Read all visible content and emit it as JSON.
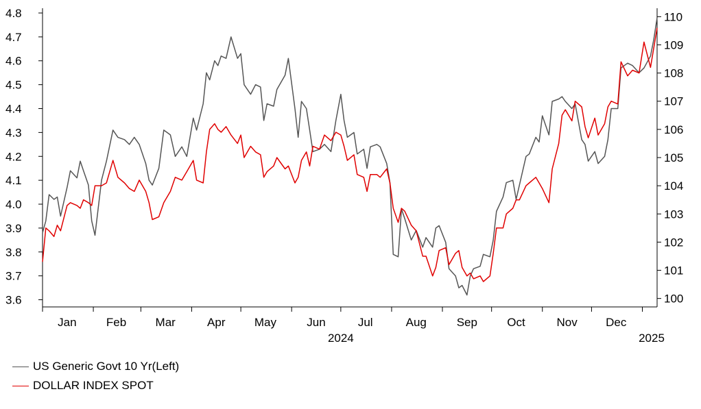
{
  "chart_data": {
    "type": "line",
    "title": "",
    "x_months": [
      "Jan",
      "Feb",
      "Mar",
      "Apr",
      "May",
      "Jun",
      "Jul",
      "Aug",
      "Sep",
      "Oct",
      "Nov",
      "Dec"
    ],
    "x_year_labels": [
      "2024",
      "2025"
    ],
    "x_range": [
      "2024-01-01",
      "2025-01-10"
    ],
    "y_left": {
      "ylim": [
        3.57,
        4.82
      ],
      "ticks": [
        "3.6",
        "3.7",
        "3.8",
        "3.9",
        "4.0",
        "4.1",
        "4.2",
        "4.3",
        "4.4",
        "4.5",
        "4.6",
        "4.7",
        "4.8"
      ]
    },
    "y_right": {
      "ylim": [
        99.7,
        110.3
      ],
      "ticks": [
        "100",
        "101",
        "102",
        "103",
        "104",
        "105",
        "106",
        "107",
        "108",
        "109",
        "110"
      ]
    },
    "grid": false,
    "legend_position": "bottom-left",
    "series": [
      {
        "name": "US Generic Govt 10 Yr(Left)",
        "axis": "left",
        "color": "#555555",
        "points": [
          [
            "2024-01-01",
            3.88
          ],
          [
            "2024-01-03",
            3.93
          ],
          [
            "2024-01-05",
            4.04
          ],
          [
            "2024-01-08",
            4.02
          ],
          [
            "2024-01-10",
            4.03
          ],
          [
            "2024-01-12",
            3.95
          ],
          [
            "2024-01-16",
            4.07
          ],
          [
            "2024-01-18",
            4.14
          ],
          [
            "2024-01-22",
            4.11
          ],
          [
            "2024-01-24",
            4.18
          ],
          [
            "2024-01-26",
            4.14
          ],
          [
            "2024-01-29",
            4.08
          ],
          [
            "2024-01-31",
            3.93
          ],
          [
            "2024-02-02",
            3.87
          ],
          [
            "2024-02-06",
            4.1
          ],
          [
            "2024-02-09",
            4.18
          ],
          [
            "2024-02-13",
            4.31
          ],
          [
            "2024-02-16",
            4.28
          ],
          [
            "2024-02-20",
            4.27
          ],
          [
            "2024-02-23",
            4.25
          ],
          [
            "2024-02-26",
            4.28
          ],
          [
            "2024-02-29",
            4.25
          ],
          [
            "2024-03-04",
            4.17
          ],
          [
            "2024-03-06",
            4.1
          ],
          [
            "2024-03-08",
            4.08
          ],
          [
            "2024-03-12",
            4.15
          ],
          [
            "2024-03-15",
            4.31
          ],
          [
            "2024-03-19",
            4.29
          ],
          [
            "2024-03-22",
            4.2
          ],
          [
            "2024-03-26",
            4.24
          ],
          [
            "2024-03-29",
            4.2
          ],
          [
            "2024-04-02",
            4.36
          ],
          [
            "2024-04-04",
            4.31
          ],
          [
            "2024-04-08",
            4.42
          ],
          [
            "2024-04-10",
            4.55
          ],
          [
            "2024-04-12",
            4.52
          ],
          [
            "2024-04-15",
            4.6
          ],
          [
            "2024-04-17",
            4.58
          ],
          [
            "2024-04-19",
            4.62
          ],
          [
            "2024-04-22",
            4.61
          ],
          [
            "2024-04-25",
            4.7
          ],
          [
            "2024-04-29",
            4.61
          ],
          [
            "2024-05-01",
            4.63
          ],
          [
            "2024-05-03",
            4.5
          ],
          [
            "2024-05-07",
            4.46
          ],
          [
            "2024-05-10",
            4.5
          ],
          [
            "2024-05-13",
            4.49
          ],
          [
            "2024-05-15",
            4.35
          ],
          [
            "2024-05-17",
            4.42
          ],
          [
            "2024-05-21",
            4.41
          ],
          [
            "2024-05-23",
            4.48
          ],
          [
            "2024-05-28",
            4.54
          ],
          [
            "2024-05-30",
            4.61
          ],
          [
            "2024-06-03",
            4.4
          ],
          [
            "2024-06-05",
            4.28
          ],
          [
            "2024-06-07",
            4.43
          ],
          [
            "2024-06-10",
            4.4
          ],
          [
            "2024-06-12",
            4.31
          ],
          [
            "2024-06-14",
            4.22
          ],
          [
            "2024-06-18",
            4.23
          ],
          [
            "2024-06-21",
            4.25
          ],
          [
            "2024-06-25",
            4.22
          ],
          [
            "2024-06-28",
            4.35
          ],
          [
            "2024-07-01",
            4.46
          ],
          [
            "2024-07-03",
            4.35
          ],
          [
            "2024-07-05",
            4.28
          ],
          [
            "2024-07-09",
            4.3
          ],
          [
            "2024-07-11",
            4.21
          ],
          [
            "2024-07-15",
            4.23
          ],
          [
            "2024-07-17",
            4.15
          ],
          [
            "2024-07-19",
            4.24
          ],
          [
            "2024-07-23",
            4.25
          ],
          [
            "2024-07-25",
            4.24
          ],
          [
            "2024-07-29",
            4.17
          ],
          [
            "2024-07-31",
            4.09
          ],
          [
            "2024-08-02",
            3.79
          ],
          [
            "2024-08-05",
            3.78
          ],
          [
            "2024-08-07",
            3.98
          ],
          [
            "2024-08-09",
            3.94
          ],
          [
            "2024-08-13",
            3.85
          ],
          [
            "2024-08-16",
            3.89
          ],
          [
            "2024-08-20",
            3.82
          ],
          [
            "2024-08-22",
            3.86
          ],
          [
            "2024-08-26",
            3.82
          ],
          [
            "2024-08-28",
            3.9
          ],
          [
            "2024-08-30",
            3.91
          ],
          [
            "2024-09-03",
            3.84
          ],
          [
            "2024-09-05",
            3.73
          ],
          [
            "2024-09-09",
            3.7
          ],
          [
            "2024-09-11",
            3.65
          ],
          [
            "2024-09-13",
            3.66
          ],
          [
            "2024-09-16",
            3.62
          ],
          [
            "2024-09-18",
            3.7
          ],
          [
            "2024-09-20",
            3.73
          ],
          [
            "2024-09-24",
            3.74
          ],
          [
            "2024-09-26",
            3.79
          ],
          [
            "2024-09-30",
            3.78
          ],
          [
            "2024-10-02",
            3.85
          ],
          [
            "2024-10-04",
            3.97
          ],
          [
            "2024-10-08",
            4.03
          ],
          [
            "2024-10-10",
            4.09
          ],
          [
            "2024-10-14",
            4.1
          ],
          [
            "2024-10-16",
            4.02
          ],
          [
            "2024-10-18",
            4.08
          ],
          [
            "2024-10-22",
            4.2
          ],
          [
            "2024-10-24",
            4.21
          ],
          [
            "2024-10-28",
            4.28
          ],
          [
            "2024-10-30",
            4.26
          ],
          [
            "2024-11-01",
            4.37
          ],
          [
            "2024-11-05",
            4.29
          ],
          [
            "2024-11-07",
            4.43
          ],
          [
            "2024-11-11",
            4.44
          ],
          [
            "2024-11-13",
            4.45
          ],
          [
            "2024-11-15",
            4.43
          ],
          [
            "2024-11-19",
            4.4
          ],
          [
            "2024-11-21",
            4.42
          ],
          [
            "2024-11-25",
            4.27
          ],
          [
            "2024-11-27",
            4.25
          ],
          [
            "2024-11-29",
            4.18
          ],
          [
            "2024-12-03",
            4.22
          ],
          [
            "2024-12-05",
            4.17
          ],
          [
            "2024-12-09",
            4.2
          ],
          [
            "2024-12-11",
            4.27
          ],
          [
            "2024-12-13",
            4.4
          ],
          [
            "2024-12-17",
            4.4
          ],
          [
            "2024-12-19",
            4.57
          ],
          [
            "2024-12-23",
            4.59
          ],
          [
            "2024-12-26",
            4.58
          ],
          [
            "2024-12-30",
            4.55
          ],
          [
            "2025-01-02",
            4.57
          ],
          [
            "2025-01-06",
            4.62
          ],
          [
            "2025-01-08",
            4.69
          ],
          [
            "2025-01-10",
            4.78
          ]
        ]
      },
      {
        "name": "DOLLAR INDEX SPOT",
        "axis": "right",
        "color": "#e00000",
        "points": [
          [
            "2024-01-01",
            101.3
          ],
          [
            "2024-01-03",
            102.5
          ],
          [
            "2024-01-05",
            102.4
          ],
          [
            "2024-01-08",
            102.2
          ],
          [
            "2024-01-10",
            102.6
          ],
          [
            "2024-01-12",
            102.4
          ],
          [
            "2024-01-16",
            103.3
          ],
          [
            "2024-01-18",
            103.4
          ],
          [
            "2024-01-22",
            103.3
          ],
          [
            "2024-01-24",
            103.2
          ],
          [
            "2024-01-26",
            103.5
          ],
          [
            "2024-01-29",
            103.4
          ],
          [
            "2024-01-31",
            103.3
          ],
          [
            "2024-02-02",
            104.0
          ],
          [
            "2024-02-06",
            104.0
          ],
          [
            "2024-02-09",
            104.1
          ],
          [
            "2024-02-13",
            104.9
          ],
          [
            "2024-02-16",
            104.3
          ],
          [
            "2024-02-20",
            104.1
          ],
          [
            "2024-02-23",
            103.9
          ],
          [
            "2024-02-26",
            103.8
          ],
          [
            "2024-02-29",
            104.2
          ],
          [
            "2024-03-04",
            103.8
          ],
          [
            "2024-03-06",
            103.4
          ],
          [
            "2024-03-08",
            102.8
          ],
          [
            "2024-03-12",
            102.9
          ],
          [
            "2024-03-15",
            103.4
          ],
          [
            "2024-03-19",
            103.8
          ],
          [
            "2024-03-22",
            104.3
          ],
          [
            "2024-03-26",
            104.2
          ],
          [
            "2024-03-29",
            104.5
          ],
          [
            "2024-04-02",
            104.9
          ],
          [
            "2024-04-04",
            104.2
          ],
          [
            "2024-04-08",
            104.1
          ],
          [
            "2024-04-10",
            105.2
          ],
          [
            "2024-04-12",
            106.0
          ],
          [
            "2024-04-15",
            106.2
          ],
          [
            "2024-04-17",
            106.0
          ],
          [
            "2024-04-19",
            105.9
          ],
          [
            "2024-04-22",
            106.1
          ],
          [
            "2024-04-25",
            105.8
          ],
          [
            "2024-04-29",
            105.5
          ],
          [
            "2024-05-01",
            105.8
          ],
          [
            "2024-05-03",
            105.0
          ],
          [
            "2024-05-07",
            105.4
          ],
          [
            "2024-05-10",
            105.2
          ],
          [
            "2024-05-13",
            105.1
          ],
          [
            "2024-05-15",
            104.3
          ],
          [
            "2024-05-17",
            104.5
          ],
          [
            "2024-05-21",
            104.7
          ],
          [
            "2024-05-23",
            105.0
          ],
          [
            "2024-05-28",
            104.6
          ],
          [
            "2024-05-30",
            104.7
          ],
          [
            "2024-06-03",
            104.1
          ],
          [
            "2024-06-05",
            104.3
          ],
          [
            "2024-06-07",
            104.9
          ],
          [
            "2024-06-10",
            105.2
          ],
          [
            "2024-06-12",
            104.7
          ],
          [
            "2024-06-14",
            105.4
          ],
          [
            "2024-06-18",
            105.3
          ],
          [
            "2024-06-21",
            105.8
          ],
          [
            "2024-06-25",
            105.6
          ],
          [
            "2024-06-28",
            105.9
          ],
          [
            "2024-07-01",
            105.8
          ],
          [
            "2024-07-03",
            105.4
          ],
          [
            "2024-07-05",
            104.9
          ],
          [
            "2024-07-09",
            105.1
          ],
          [
            "2024-07-11",
            104.4
          ],
          [
            "2024-07-15",
            104.3
          ],
          [
            "2024-07-17",
            103.8
          ],
          [
            "2024-07-19",
            104.4
          ],
          [
            "2024-07-23",
            104.4
          ],
          [
            "2024-07-25",
            104.3
          ],
          [
            "2024-07-29",
            104.6
          ],
          [
            "2024-07-31",
            104.1
          ],
          [
            "2024-08-02",
            103.2
          ],
          [
            "2024-08-05",
            102.7
          ],
          [
            "2024-08-07",
            103.2
          ],
          [
            "2024-08-09",
            103.1
          ],
          [
            "2024-08-13",
            102.6
          ],
          [
            "2024-08-16",
            102.4
          ],
          [
            "2024-08-20",
            101.5
          ],
          [
            "2024-08-22",
            101.5
          ],
          [
            "2024-08-26",
            100.8
          ],
          [
            "2024-08-28",
            101.1
          ],
          [
            "2024-08-30",
            101.7
          ],
          [
            "2024-09-03",
            101.8
          ],
          [
            "2024-09-05",
            101.2
          ],
          [
            "2024-09-09",
            101.6
          ],
          [
            "2024-09-11",
            101.7
          ],
          [
            "2024-09-13",
            101.1
          ],
          [
            "2024-09-16",
            100.8
          ],
          [
            "2024-09-18",
            100.9
          ],
          [
            "2024-09-20",
            100.7
          ],
          [
            "2024-09-24",
            100.8
          ],
          [
            "2024-09-26",
            100.6
          ],
          [
            "2024-09-30",
            100.8
          ],
          [
            "2024-10-02",
            101.6
          ],
          [
            "2024-10-04",
            102.5
          ],
          [
            "2024-10-08",
            102.5
          ],
          [
            "2024-10-10",
            103.0
          ],
          [
            "2024-10-14",
            103.2
          ],
          [
            "2024-10-16",
            103.5
          ],
          [
            "2024-10-18",
            103.5
          ],
          [
            "2024-10-22",
            104.0
          ],
          [
            "2024-10-24",
            104.1
          ],
          [
            "2024-10-28",
            104.3
          ],
          [
            "2024-10-30",
            104.1
          ],
          [
            "2024-11-01",
            103.9
          ],
          [
            "2024-11-05",
            103.4
          ],
          [
            "2024-11-07",
            104.6
          ],
          [
            "2024-11-11",
            105.5
          ],
          [
            "2024-11-13",
            106.5
          ],
          [
            "2024-11-15",
            106.7
          ],
          [
            "2024-11-19",
            106.3
          ],
          [
            "2024-11-21",
            107.0
          ],
          [
            "2024-11-25",
            106.8
          ],
          [
            "2024-11-27",
            106.1
          ],
          [
            "2024-11-29",
            105.7
          ],
          [
            "2024-12-03",
            106.4
          ],
          [
            "2024-12-05",
            105.8
          ],
          [
            "2024-12-09",
            106.2
          ],
          [
            "2024-12-11",
            106.8
          ],
          [
            "2024-12-13",
            107.0
          ],
          [
            "2024-12-17",
            106.9
          ],
          [
            "2024-12-19",
            108.4
          ],
          [
            "2024-12-23",
            107.9
          ],
          [
            "2024-12-26",
            108.1
          ],
          [
            "2024-12-30",
            108.0
          ],
          [
            "2025-01-02",
            109.1
          ],
          [
            "2025-01-06",
            108.2
          ],
          [
            "2025-01-08",
            108.9
          ],
          [
            "2025-01-10",
            109.6
          ]
        ]
      }
    ]
  }
}
